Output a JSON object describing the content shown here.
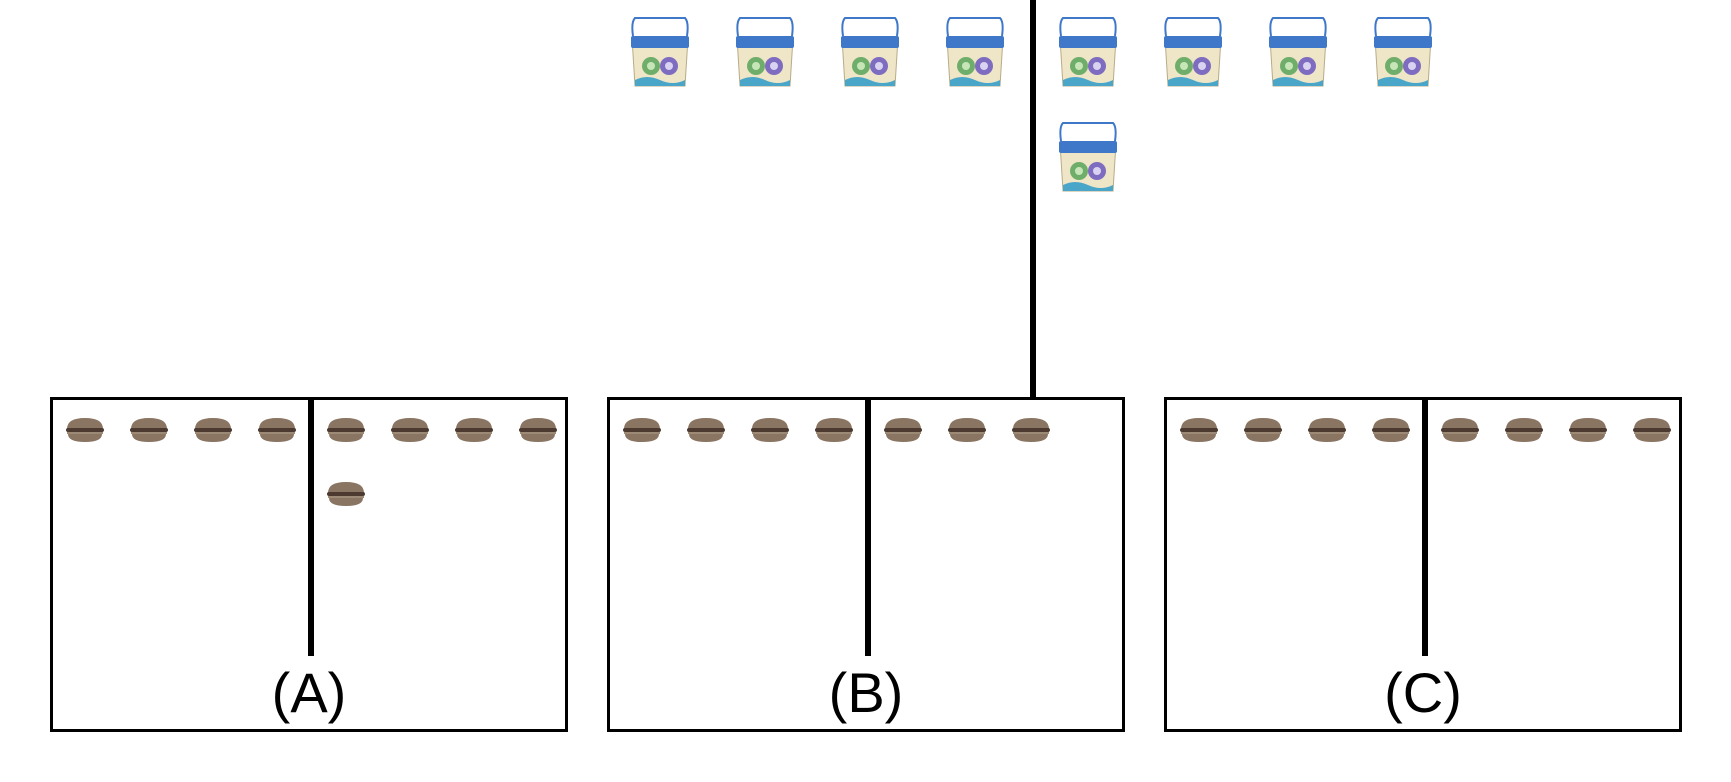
{
  "top_group": {
    "left_count": 4,
    "right_count": 5,
    "item_icon": "basket-icon"
  },
  "options": [
    {
      "label": "(A)",
      "left_count": 4,
      "right_count": 5,
      "item_icon": "burger-icon"
    },
    {
      "label": "(B)",
      "left_count": 4,
      "right_count": 3,
      "item_icon": "burger-icon"
    },
    {
      "label": "(C)",
      "left_count": 4,
      "right_count": 4,
      "item_icon": "burger-icon"
    }
  ],
  "colors": {
    "line": "#000000",
    "basket_blue": "#3f78c8",
    "basket_body": "#efe6c8",
    "bun": "#8a7462",
    "patty": "#4c3a30"
  }
}
